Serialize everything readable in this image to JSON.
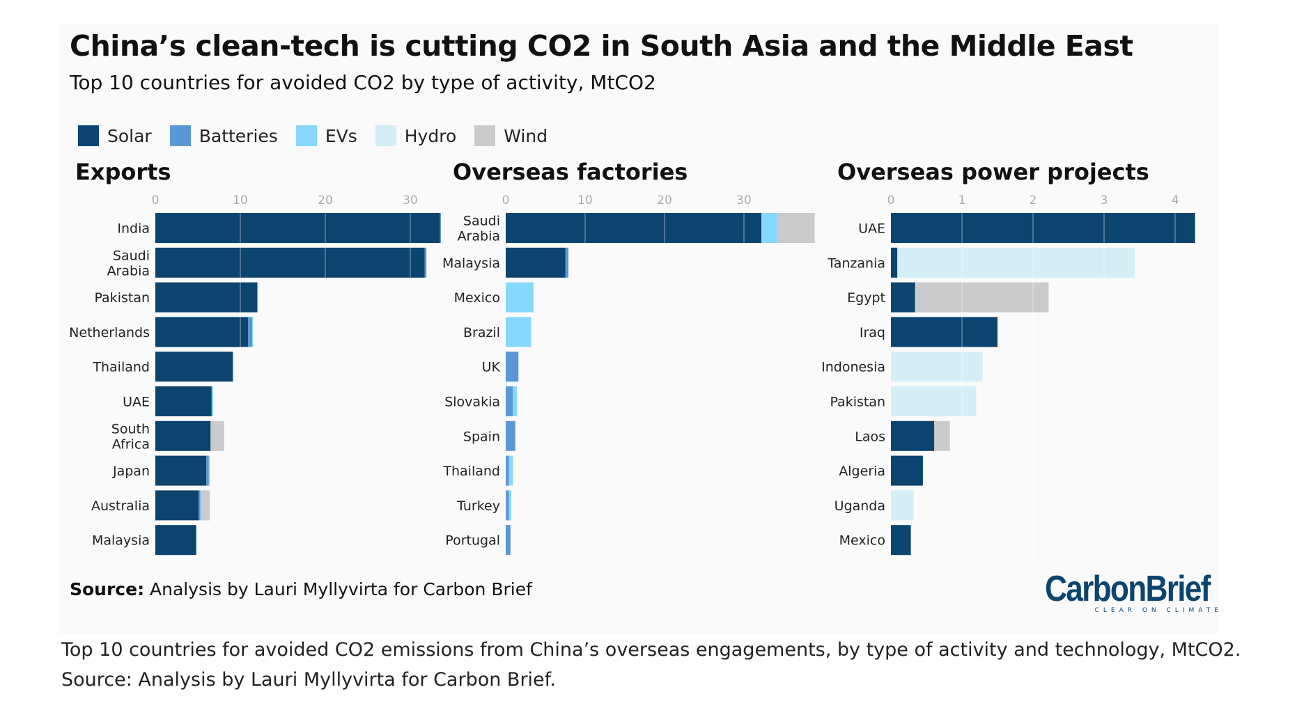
{
  "title": "China’s clean-tech is cutting CO2 in South Asia and the Middle East",
  "subtitle": "Top 10 countries for avoided CO2 by type of activity, MtCO2",
  "legend": [
    {
      "label": "Solar",
      "color": "#0c4470"
    },
    {
      "label": "Batteries",
      "color": "#5b97d5"
    },
    {
      "label": "EVs",
      "color": "#86d9fc"
    },
    {
      "label": "Hydro",
      "color": "#d4eef5"
    },
    {
      "label": "Wind",
      "color": "#cbcbcb"
    }
  ],
  "source_label": "Source:",
  "source_text": " Analysis by Lauri Myllyvirta for Carbon Brief",
  "logo": {
    "name": "CarbonBrief",
    "tagline": "CLEAR ON CLIMATE"
  },
  "caption_lines": [
    "Top 10 countries for avoided CO2 emissions from China’s overseas engagements, by type of activity and technology, MtCO2.",
    "Source: Analysis by Lauri Myllyvirta for Carbon Brief."
  ],
  "chart_data": [
    {
      "type": "bar",
      "stacked": true,
      "orientation": "horizontal",
      "title": "Exports",
      "ticks": [
        "0",
        "10",
        "20",
        "30"
      ],
      "xlim": [
        0,
        34
      ],
      "categories": [
        "India",
        "Saudi\nArabia",
        "Pakistan",
        "Netherlands",
        "Thailand",
        "UAE",
        "South\nAfrica",
        "Japan",
        "Australia",
        "Malaysia"
      ],
      "series": [
        {
          "name": "Solar",
          "values": [
            33.5,
            31.7,
            12.0,
            10.9,
            9.1,
            6.6,
            6.5,
            6.0,
            5.1,
            4.8
          ]
        },
        {
          "name": "Batteries",
          "values": [
            0.1,
            0.2,
            0,
            0.5,
            0,
            0.1,
            0,
            0.3,
            0.2,
            0
          ]
        },
        {
          "name": "EVs",
          "values": [
            0,
            0,
            0.1,
            0.1,
            0.1,
            0.1,
            0,
            0.1,
            0.1,
            0.05
          ]
        },
        {
          "name": "Hydro",
          "values": [
            0,
            0,
            0,
            0,
            0,
            0,
            0,
            0,
            0,
            0
          ]
        },
        {
          "name": "Wind",
          "values": [
            0,
            0,
            0,
            0,
            0,
            0,
            1.6,
            0,
            1.0,
            0
          ]
        }
      ]
    },
    {
      "type": "bar",
      "stacked": true,
      "orientation": "horizontal",
      "title": "Overseas factories",
      "ticks": [
        "0",
        "10",
        "20",
        "30"
      ],
      "xlim": [
        0,
        39
      ],
      "categories": [
        "Saudi\nArabia",
        "Malaysia",
        "Mexico",
        "Brazil",
        "UK",
        "Slovakia",
        "Spain",
        "Thailand",
        "Turkey",
        "Portugal"
      ],
      "series": [
        {
          "name": "Solar",
          "values": [
            32.2,
            7.5,
            0,
            0,
            0,
            0,
            0,
            0,
            0,
            0
          ]
        },
        {
          "name": "Batteries",
          "values": [
            0,
            0.4,
            0,
            0,
            1.6,
            0.9,
            1.2,
            0.4,
            0.4,
            0.6
          ]
        },
        {
          "name": "EVs",
          "values": [
            2.0,
            0,
            3.5,
            3.2,
            0,
            0.5,
            0,
            0.5,
            0.3,
            0
          ]
        },
        {
          "name": "Hydro",
          "values": [
            0,
            0,
            0,
            0,
            0,
            0,
            0,
            0,
            0,
            0
          ]
        },
        {
          "name": "Wind",
          "values": [
            4.7,
            0,
            0,
            0,
            0,
            0,
            0,
            0,
            0,
            0
          ]
        }
      ]
    },
    {
      "type": "bar",
      "stacked": true,
      "orientation": "horizontal",
      "title": "Overseas power projects",
      "ticks": [
        "0",
        "1",
        "2",
        "3",
        "4"
      ],
      "xlim": [
        0,
        4.3
      ],
      "categories": [
        "UAE",
        "Tanzania",
        "Egypt",
        "Iraq",
        "Indonesia",
        "Pakistan",
        "Laos",
        "Algeria",
        "Uganda",
        "Mexico"
      ],
      "series": [
        {
          "name": "Solar",
          "values": [
            4.28,
            0.09,
            0.34,
            1.5,
            0,
            0,
            0.61,
            0.45,
            0,
            0.28
          ]
        },
        {
          "name": "Batteries",
          "values": [
            0,
            0,
            0,
            0,
            0,
            0,
            0,
            0,
            0,
            0
          ]
        },
        {
          "name": "EVs",
          "values": [
            0,
            0,
            0,
            0,
            0,
            0,
            0,
            0,
            0,
            0
          ]
        },
        {
          "name": "Hydro",
          "values": [
            0,
            3.34,
            0,
            0,
            1.29,
            1.2,
            0,
            0,
            0.32,
            0
          ]
        },
        {
          "name": "Wind",
          "values": [
            0,
            0,
            1.88,
            0,
            0,
            0,
            0.22,
            0,
            0,
            0
          ]
        }
      ]
    }
  ]
}
